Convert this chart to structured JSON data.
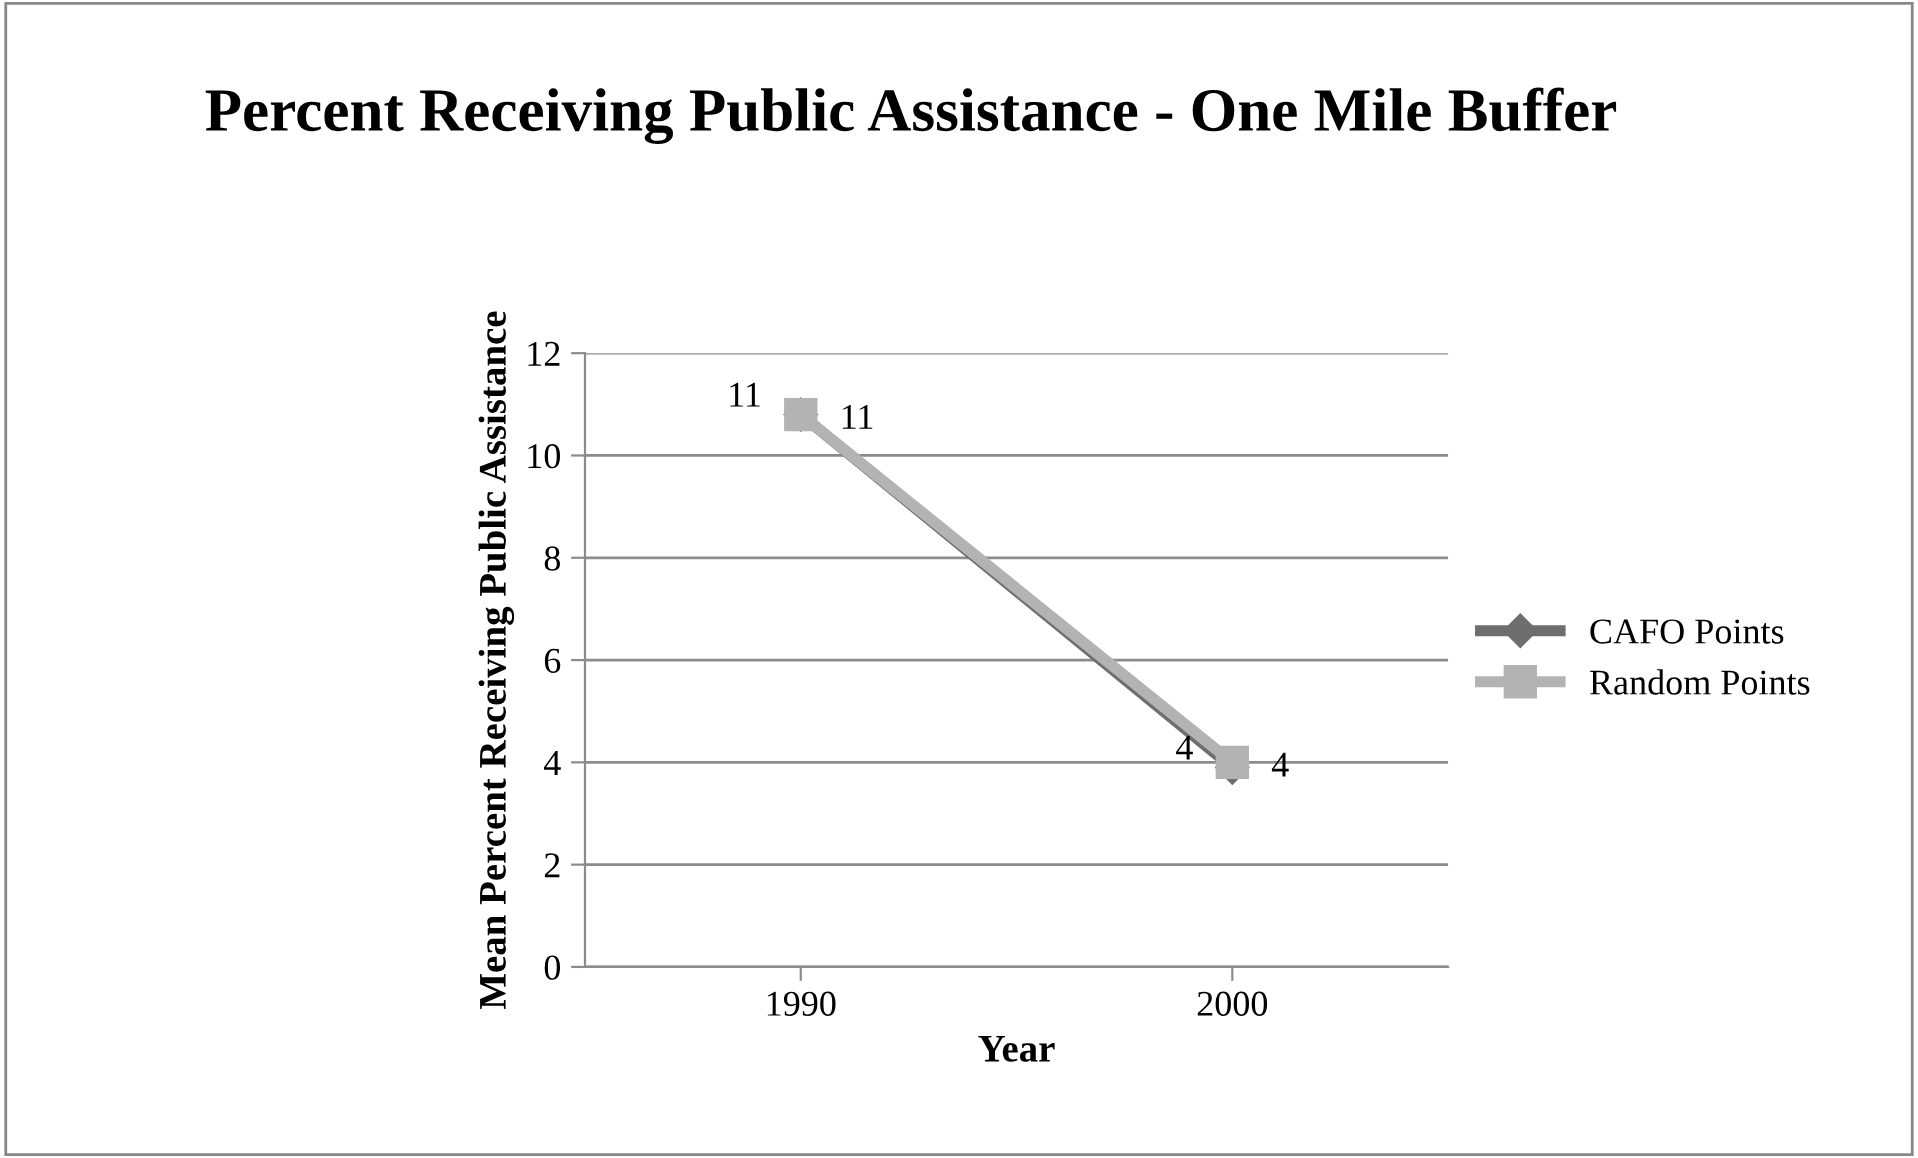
{
  "chart_data": {
    "type": "line",
    "title": "Percent Receiving Public Assistance - One Mile Buffer",
    "xlabel": "Year",
    "ylabel": "Mean Percent Receiving Public Assistance",
    "categories": [
      "1990",
      "2000"
    ],
    "series": [
      {
        "name": "CAFO Points",
        "color": "#6e6e6e",
        "marker": "diamond",
        "values": [
          10.8,
          3.9
        ],
        "value_labels": [
          "11",
          "4"
        ]
      },
      {
        "name": "Random Points",
        "color": "#b3b3b3",
        "marker": "square",
        "values": [
          10.8,
          4.0
        ],
        "value_labels": [
          "11",
          "4"
        ]
      }
    ],
    "ylim": [
      0,
      12
    ],
    "yticks": [
      0,
      2,
      4,
      6,
      8,
      10,
      12
    ],
    "grid": "y",
    "legend": "right"
  }
}
